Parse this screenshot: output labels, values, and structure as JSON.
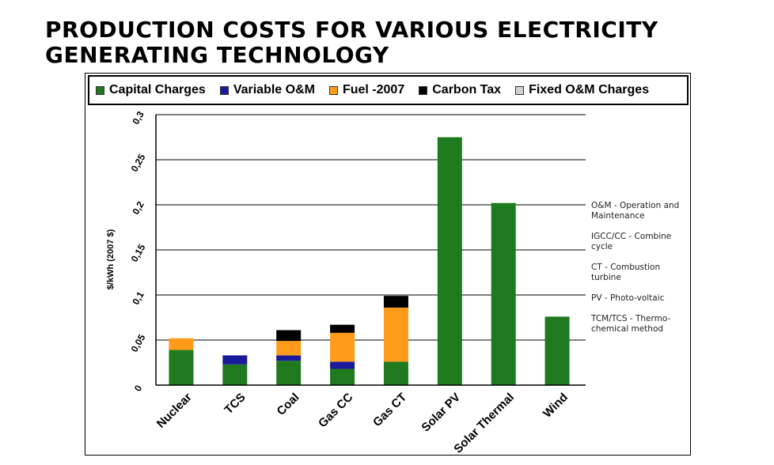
{
  "title": {
    "line1": "PRODUCTION COSTS FOR VARIOUS ELECTRICITY",
    "line2": "GENERATING TECHNOLOGY"
  },
  "legend": [
    {
      "label": "Capital Charges",
      "color": "#1f7a1f"
    },
    {
      "label": "Variable O&M",
      "color": "#1a1a9c"
    },
    {
      "label": "Fuel -2007",
      "color": "#ff9a1a"
    },
    {
      "label": "Carbon Tax",
      "color": "#000000"
    },
    {
      "label": "Fixed O&M Charges",
      "color": "#d0d0d0"
    }
  ],
  "notes": [
    "O&M - Operation and Maintenance",
    "IGCC/CC - Combine cycle",
    "CT - Combustion turbine",
    "PV - Photo-voltaic",
    "TCM/TCS - Thermo-chemical method"
  ],
  "chart_data": {
    "type": "bar",
    "stacked": true,
    "title": "",
    "xlabel": "",
    "ylabel": "$/kWh (2007 $)",
    "ylim": [
      0,
      0.3
    ],
    "yticks": [
      {
        "value": 0,
        "label": "0"
      },
      {
        "value": 0.05,
        "label": "0,05"
      },
      {
        "value": 0.1,
        "label": "0,1"
      },
      {
        "value": 0.15,
        "label": "0,15"
      },
      {
        "value": 0.2,
        "label": "0,2"
      },
      {
        "value": 0.25,
        "label": "0,25"
      },
      {
        "value": 0.3,
        "label": "0,3"
      }
    ],
    "grid": true,
    "categories": [
      "Nuclear",
      "TCS",
      "Coal",
      "Gas CC",
      "Gas CT",
      "Solar PV",
      "Solar Thermal",
      "Wind"
    ],
    "series": [
      {
        "name": "Capital Charges",
        "color": "#1f7a1f",
        "values": [
          0.039,
          0.023,
          0.027,
          0.018,
          0.026,
          0.275,
          0.202,
          0.076
        ]
      },
      {
        "name": "Variable O&M",
        "color": "#1a1a9c",
        "values": [
          0,
          0.01,
          0.006,
          0.008,
          0,
          0,
          0,
          0
        ]
      },
      {
        "name": "Fuel -2007",
        "color": "#ff9a1a",
        "values": [
          0.013,
          0,
          0.016,
          0.032,
          0.06,
          0,
          0,
          0
        ]
      },
      {
        "name": "Carbon Tax",
        "color": "#000000",
        "values": [
          0,
          0,
          0.012,
          0.009,
          0.013,
          0,
          0,
          0
        ]
      },
      {
        "name": "Fixed O&M Charges",
        "color": "#d0d0d0",
        "values": [
          0,
          0,
          0,
          0,
          0,
          0,
          0,
          0
        ]
      }
    ]
  }
}
